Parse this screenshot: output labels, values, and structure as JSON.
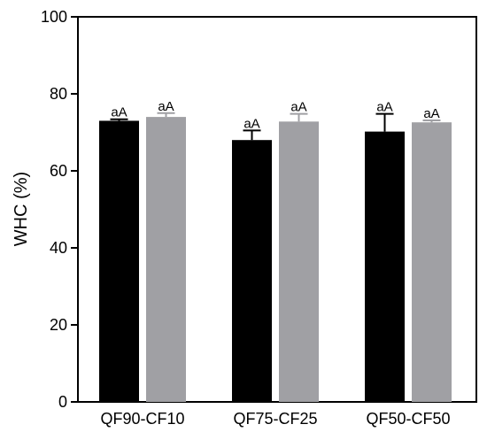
{
  "chart_data": {
    "type": "bar",
    "title": "",
    "xlabel": "",
    "ylabel": "WHC (%)",
    "ylim": [
      0,
      100
    ],
    "yticks": [
      0,
      20,
      40,
      60,
      80,
      100
    ],
    "grid": false,
    "legend": "none",
    "categories": [
      "QF90-CF10",
      "QF75-CF25",
      "QF50-CF50"
    ],
    "series": [
      {
        "color": "#000000",
        "values": [
          73.0,
          68.0,
          70.2
        ],
        "errors": [
          0.4,
          2.5,
          4.6
        ],
        "labels": [
          "aA",
          "aA",
          "aA"
        ]
      },
      {
        "color": "#a0a0a4",
        "values": [
          74.0,
          72.8,
          72.6
        ],
        "errors": [
          1.0,
          2.0,
          0.5
        ],
        "labels": [
          "aA",
          "aA",
          "aA"
        ]
      }
    ]
  }
}
